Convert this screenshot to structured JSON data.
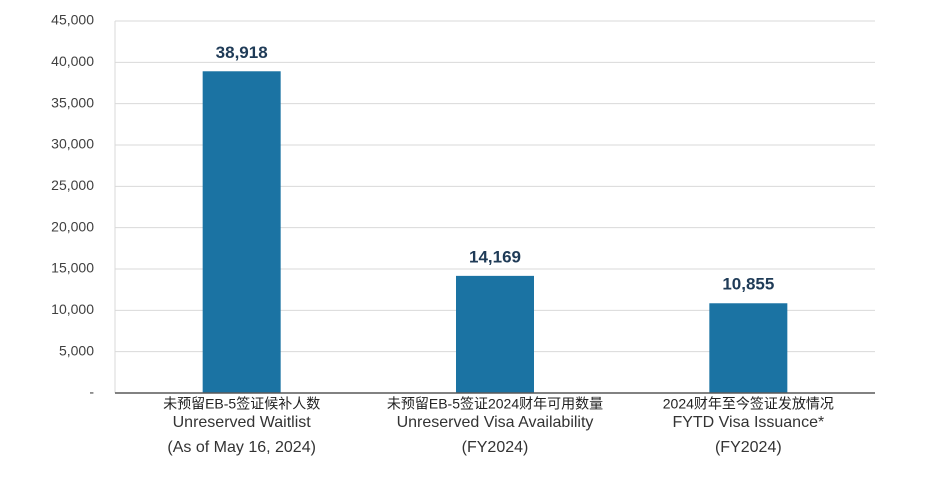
{
  "chart_data": {
    "type": "bar",
    "categories": [
      [
        "未预留EB-5签证候补人数",
        "Unreserved Waitlist",
        "(As of May 16, 2024)"
      ],
      [
        "未预留EB-5签证2024财年可用数量",
        "Unreserved Visa Availability",
        "(FY2024)"
      ],
      [
        "2024财年至今签证发放情况",
        "FYTD Visa Issuance*",
        "(FY2024)"
      ]
    ],
    "values": [
      38918,
      14169,
      10855
    ],
    "value_labels": [
      "38,918",
      "14,169",
      "10,855"
    ],
    "color": "#1b73a3",
    "ylim": [
      0,
      45000
    ],
    "yticks": [
      {
        "value": 0,
        "label": "-"
      },
      {
        "value": 5000,
        "label": "5,000"
      },
      {
        "value": 10000,
        "label": "10,000"
      },
      {
        "value": 15000,
        "label": "15,000"
      },
      {
        "value": 20000,
        "label": "20,000"
      },
      {
        "value": 25000,
        "label": "25,000"
      },
      {
        "value": 30000,
        "label": "30,000"
      },
      {
        "value": 35000,
        "label": "35,000"
      },
      {
        "value": 40000,
        "label": "40,000"
      },
      {
        "value": 45000,
        "label": "45,000"
      }
    ],
    "grid": true
  }
}
